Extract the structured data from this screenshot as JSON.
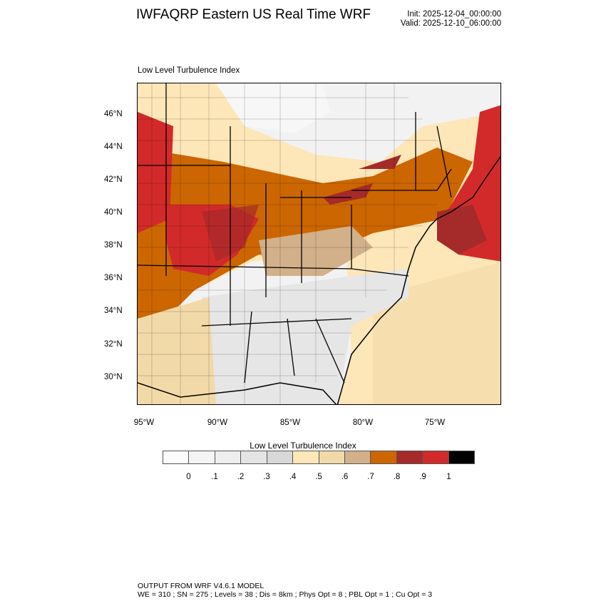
{
  "header": {
    "title": "IWFAQRP Eastern US Real Time WRF",
    "init": "Init: 2025-12-04_00:00:00",
    "valid": "Valid: 2025-12-10_06:00:00"
  },
  "plot": {
    "subtitle": "Low Level Turbulence Index",
    "lat_labels": [
      "46°N",
      "44°N",
      "42°N",
      "40°N",
      "38°N",
      "36°N",
      "34°N",
      "32°N",
      "30°N"
    ],
    "lon_labels": [
      "95°W",
      "90°W",
      "85°W",
      "80°W",
      "75°W"
    ]
  },
  "colorbar": {
    "title": "Low Level Turbulence Index",
    "colors": [
      "#fbfbfb",
      "#f4f4f4",
      "#eeeeee",
      "#e4e4e4",
      "#d8d8d8",
      "#fde6b8",
      "#f2d9a8",
      "#d2b08a",
      "#cc6600",
      "#a52a2a",
      "#d22a2a",
      "#000000"
    ],
    "labels": [
      "0",
      ".1",
      ".2",
      ".3",
      ".4",
      ".5",
      ".6",
      ".7",
      ".8",
      ".9",
      "1"
    ]
  },
  "footer": {
    "line1": "OUTPUT FROM WRF V4.6.1 MODEL",
    "line2": "WE = 310 ; SN = 275 ; Levels = 38 ; Dis = 8km ; Phys Opt = 8 ; PBL Opt = 1 ; Cu Opt = 3"
  }
}
